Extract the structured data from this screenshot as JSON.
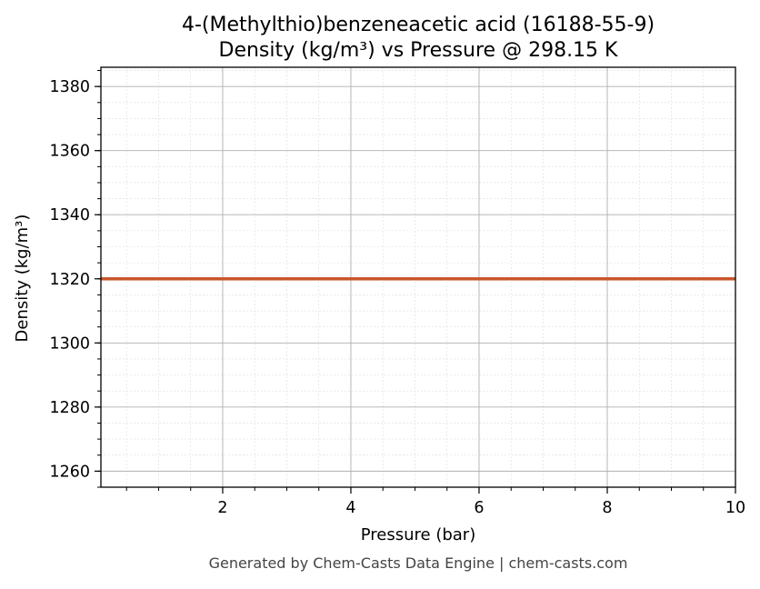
{
  "chart_data": {
    "type": "line",
    "title": "4-(Methylthio)benzeneacetic acid (16188-55-9)",
    "subtitle": "Density (kg/m³) vs Pressure @ 298.15 K",
    "xlabel": "Pressure (bar)",
    "ylabel": "Density (kg/m³)",
    "xlim": [
      0.1,
      10
    ],
    "ylim": [
      1255,
      1386
    ],
    "x_ticks": [
      2,
      4,
      6,
      8,
      10
    ],
    "y_ticks": [
      1260,
      1280,
      1300,
      1320,
      1340,
      1360,
      1380
    ],
    "grid": true,
    "minor_grid": true,
    "series": [
      {
        "color": "#c8562b",
        "x": [
          0.1,
          10
        ],
        "y": [
          1320,
          1320
        ]
      }
    ]
  },
  "footer": "Generated by Chem-Casts Data Engine | chem-casts.com"
}
